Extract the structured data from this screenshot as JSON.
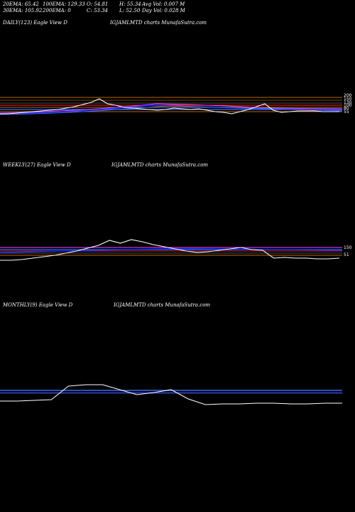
{
  "header": {
    "row1": [
      "20EMA: 65.42",
      "100EMA: 129.33",
      "O: 54.81",
      "H: 55.34",
      "Avg Vol: 0.007 M"
    ],
    "row2": [
      "30EMA: 105.92",
      "200EMA: 0",
      "C: 53.34",
      "L: 52.50",
      "Day Vol: 0.028  M"
    ]
  },
  "colors": {
    "background": "#000000",
    "price": "#ffffff",
    "ema_orange": "#ff8c00",
    "ema_blue": "#3b6cff",
    "ema_red": "#ff2a2a",
    "ema_magenta": "#ff44ff",
    "ema_navy": "#1a2cff",
    "ema_gray": "#9a9a9a"
  },
  "chart_data": [
    {
      "type": "line",
      "title_left": "DAILY(123) Eagle   View  D",
      "title_center": "IGJAMLMTD charts MunafaSutra.com",
      "y_tick_labels": [
        "200",
        "150",
        "130",
        "100",
        "80",
        "55"
      ],
      "price_y": [
        160,
        160,
        159,
        158,
        157,
        156,
        155,
        154,
        152,
        150,
        147,
        144,
        139,
        146,
        148,
        151,
        152,
        153,
        154,
        155,
        154,
        152,
        153,
        154,
        153,
        155,
        157,
        158,
        160,
        157,
        154,
        150,
        146,
        155,
        158,
        157,
        156,
        156,
        156,
        157,
        157,
        157
      ]
    },
    {
      "type": "line",
      "title_left": "WEEKLY(27) Eagle   View  D",
      "title_center": "IGJAMLMTD charts MunafaSutra.com",
      "y_tick_labels": [
        "150",
        "51"
      ],
      "price_y": [
        366,
        366,
        365,
        363,
        361,
        359,
        356,
        353,
        349,
        345,
        338,
        342,
        337,
        340,
        344,
        347,
        350,
        353,
        355,
        354,
        352,
        350,
        348,
        351,
        352,
        363,
        362,
        363,
        363,
        364,
        364,
        363
      ]
    },
    {
      "type": "line",
      "title_left": "MONTHLY(9) Eagle   View  D",
      "title_center": "IGJAMLMTD charts MunafaSutra.com",
      "price_y": [
        564,
        564,
        563,
        562,
        543,
        541,
        541,
        548,
        555,
        552,
        548,
        561,
        569,
        568,
        568,
        567,
        567,
        568,
        568,
        567,
        567
      ]
    }
  ]
}
